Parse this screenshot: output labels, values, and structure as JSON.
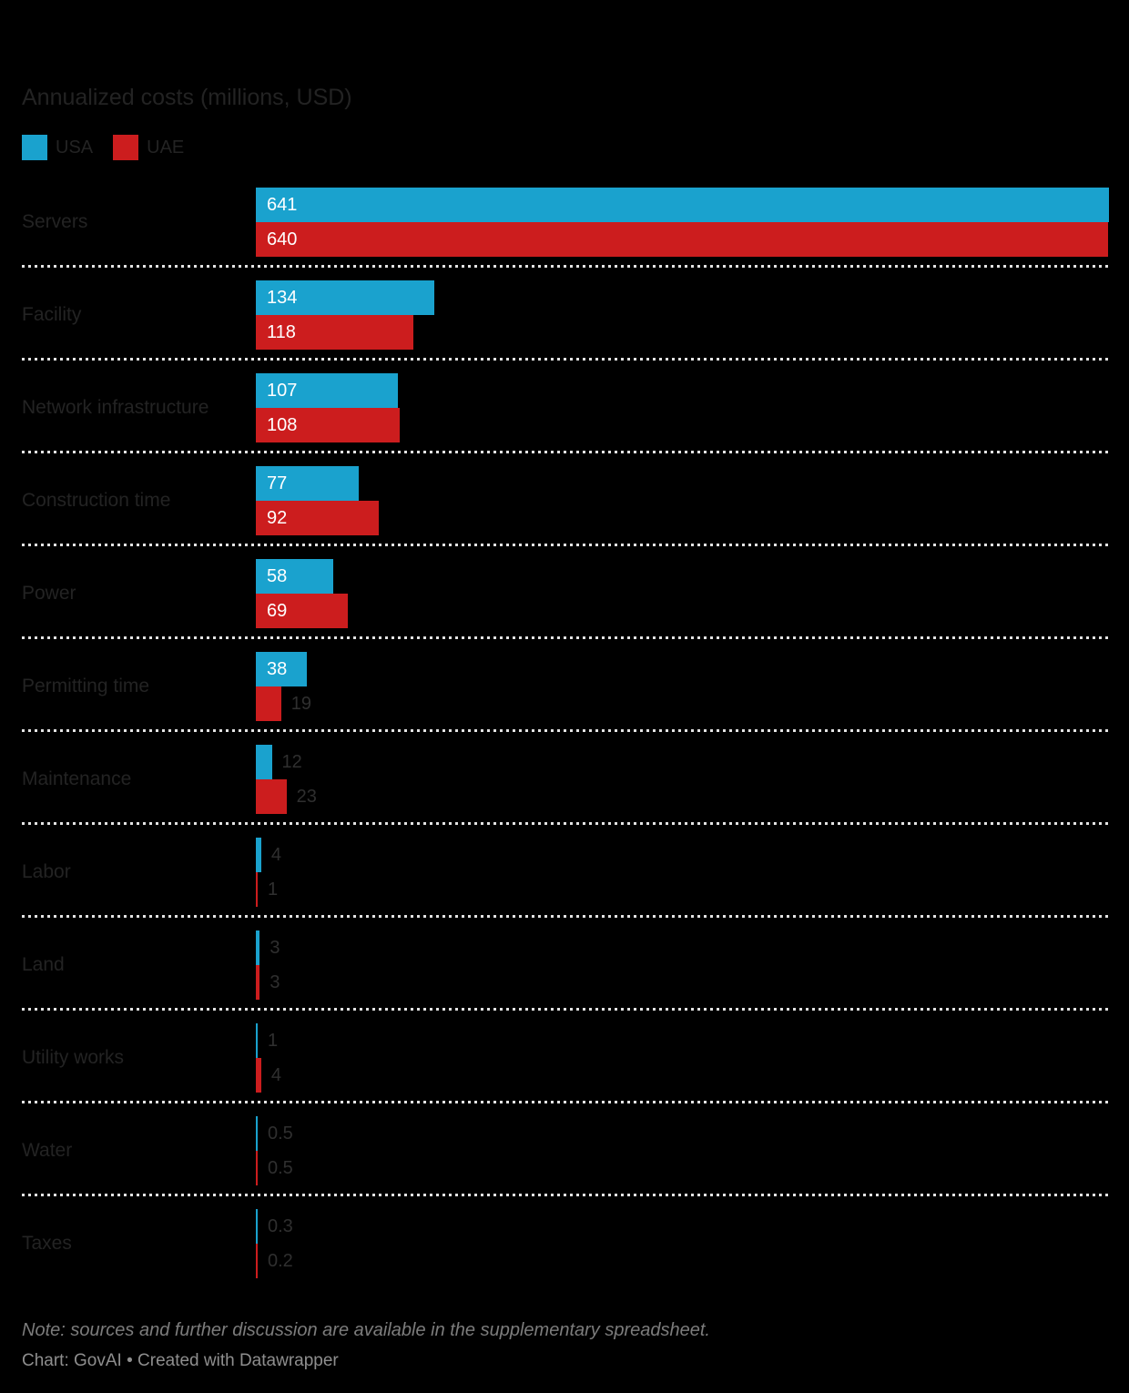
{
  "title": "Annualized costs (millions, USD)",
  "legend": [
    {
      "label": "USA",
      "color": "#1aa2ce"
    },
    {
      "label": "UAE",
      "color": "#cc1d1e"
    }
  ],
  "chart_data": {
    "type": "bar",
    "orientation": "horizontal",
    "title": "Annualized costs (millions, USD)",
    "categories": [
      "Servers",
      "Facility",
      "Network infrastructure",
      "Construction time",
      "Power",
      "Permitting time",
      "Maintenance",
      "Labor",
      "Land",
      "Utility works",
      "Water",
      "Taxes"
    ],
    "series": [
      {
        "name": "USA",
        "color": "#1aa2ce",
        "values": [
          641,
          134,
          107,
          77,
          58,
          38,
          12,
          4,
          3,
          1,
          0.5,
          0.3
        ]
      },
      {
        "name": "UAE",
        "color": "#cc1d1e",
        "values": [
          640,
          118,
          108,
          92,
          69,
          19,
          23,
          1,
          3,
          4,
          0.5,
          0.2
        ]
      }
    ],
    "xlim": [
      0,
      641
    ],
    "grid": "dotted row separators",
    "legend_position": "top-left",
    "value_labels": "inside bar when bar is wide, outside otherwise"
  },
  "note": "Note: sources and further discussion are available in the supplementary spreadsheet.",
  "byline": "Chart: GovAI • Created with Datawrapper"
}
